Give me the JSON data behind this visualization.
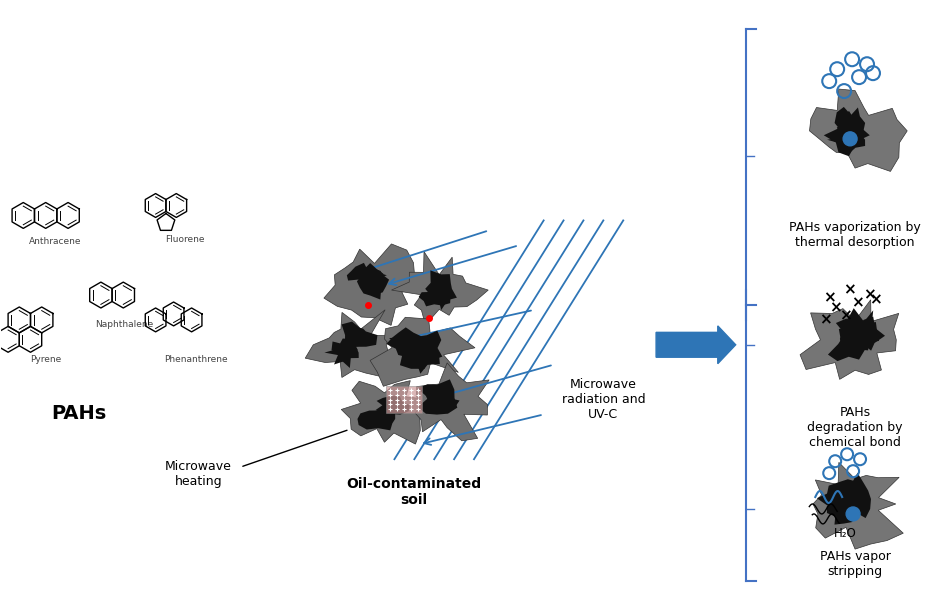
{
  "bg_color": "#ffffff",
  "arrow_color": "#2E75B6",
  "soil_color": "#707070",
  "soil_dark": "#111111",
  "bracket_color": "#4472C4",
  "text_color": "#000000",
  "mechanism1_label": "PAHs vaporization by\nthermal desorption",
  "mechanism2_label": "PAHs\ndegradation by\nchemical bond",
  "mechanism3_label": "PAHs vapor\nstripping",
  "pahs_label": "PAHs",
  "soil_label": "Oil-contaminated\nsoil",
  "mw_label": "Microwave\nheating",
  "mw_uvc_label": "Microwave\nradiation and\nUV-C",
  "anthracene_label": "Anthracene",
  "fluorene_label": "Fluorene",
  "naphthalene_label": "Naphthalene",
  "pyrene_label": "Pyrene",
  "phenanthrene_label": "Phenanthrene",
  "h2o_label": "H₂O"
}
